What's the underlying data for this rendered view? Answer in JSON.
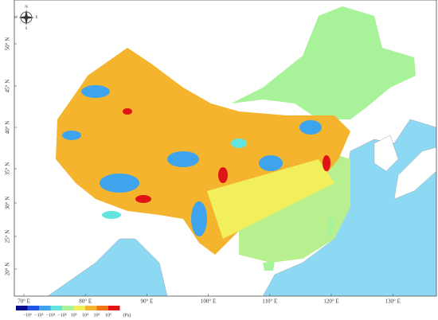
{
  "compass": {
    "north": "N",
    "south": "S",
    "west": "W",
    "east": "E"
  },
  "longitude_labels": [
    "70° E",
    "80° E",
    "90° E",
    "100° E",
    "110° E",
    "120° E",
    "130° E"
  ],
  "latitude_labels": [
    "50° N",
    "45° N",
    "40° N",
    "35° N",
    "30° N",
    "25° N",
    "20° N"
  ],
  "legend": {
    "colors": [
      "#0a0a8c",
      "#1f55e6",
      "#3ea4ee",
      "#62e4df",
      "#a8f29a",
      "#f2ef5c",
      "#f4b42e",
      "#f07414",
      "#e01414"
    ],
    "labels": [
      "−10⁶",
      "−10⁵",
      "−10⁴",
      "−10³",
      "10³",
      "10⁴",
      "10⁵",
      "10⁶"
    ],
    "unit": "(Pa)"
  }
}
